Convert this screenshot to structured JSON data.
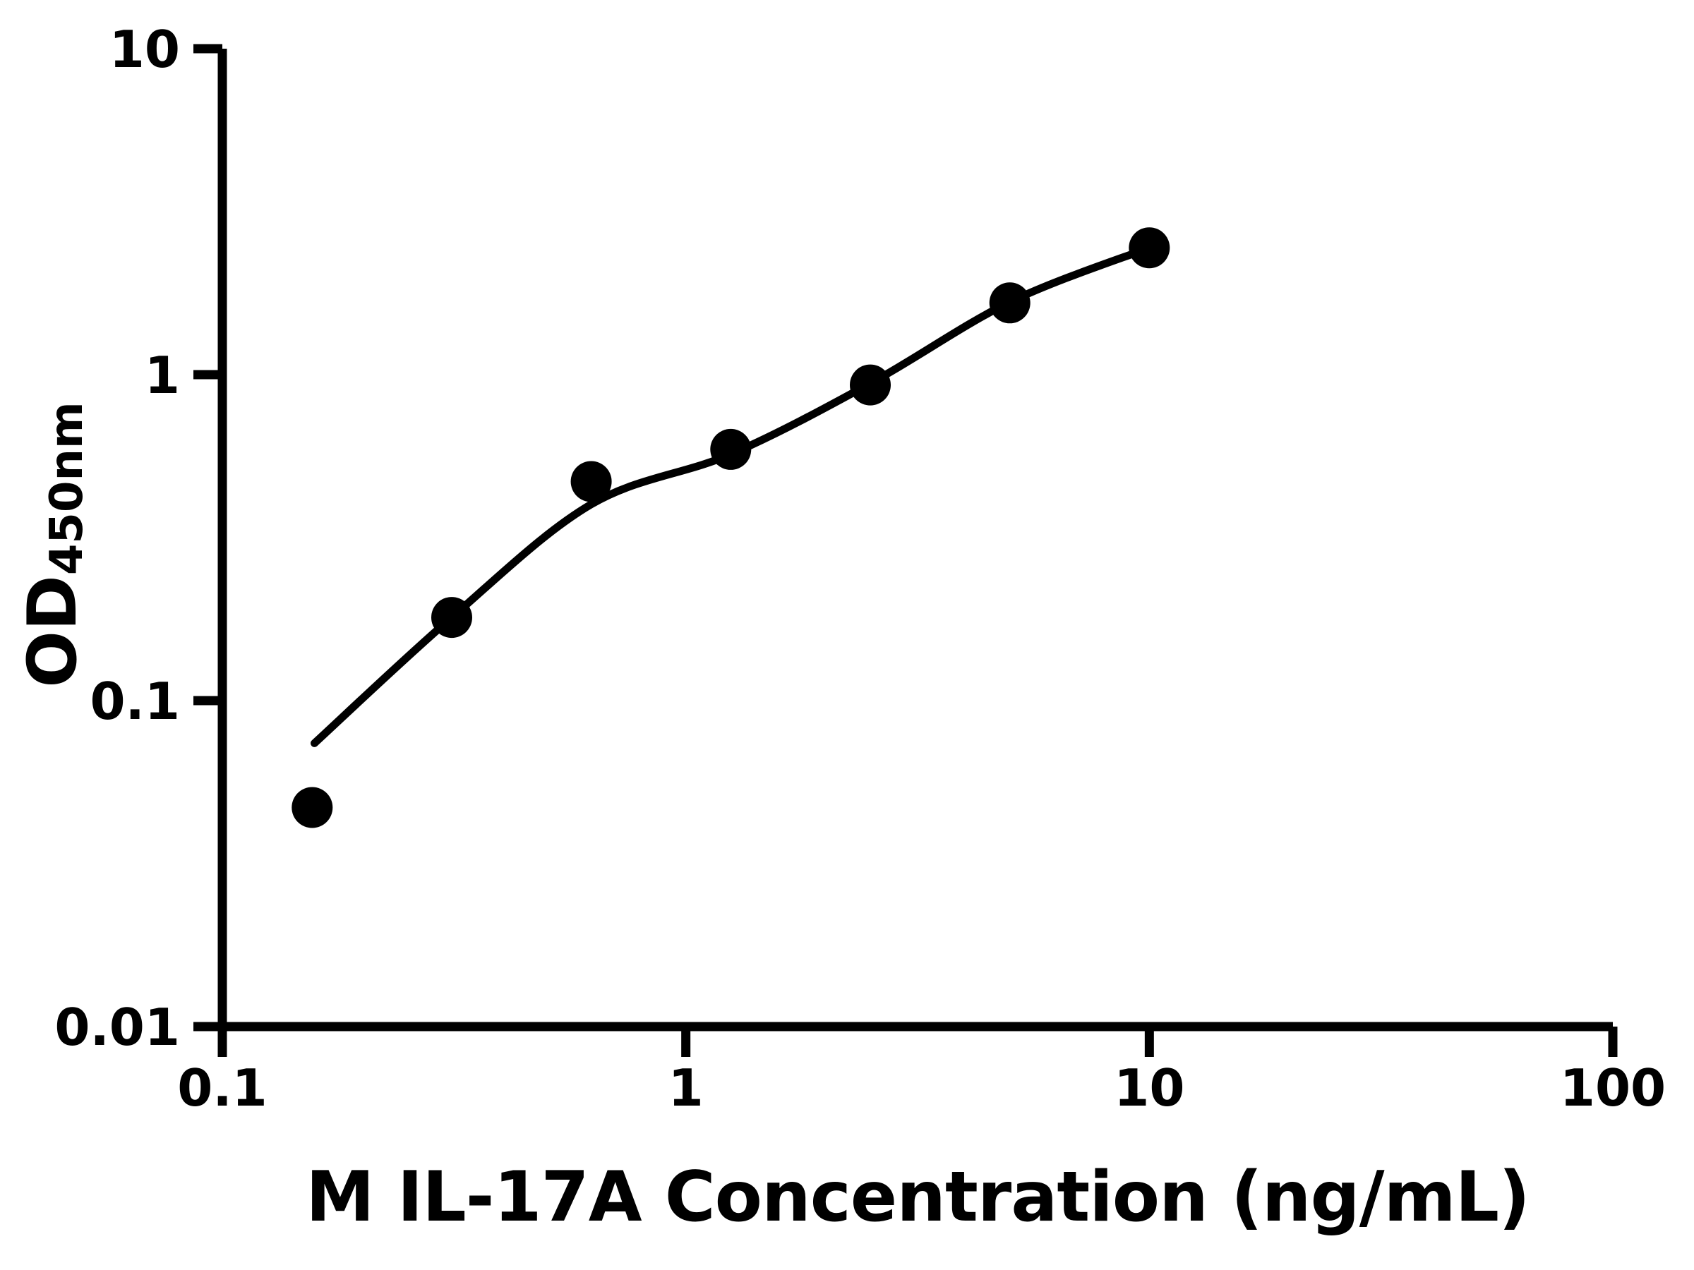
{
  "figure": {
    "background_color": "#ffffff",
    "foreground_color": "#000000"
  },
  "axis_titles": {
    "x": "M IL-17A Concentration (ng/mL)",
    "y_main": "OD",
    "y_sub": "450nm"
  },
  "chart_data": {
    "type": "scatter",
    "title": "",
    "xlabel": "M IL-17A Concentration (ng/mL)",
    "ylabel": "OD450nm",
    "x_scale": "log",
    "y_scale": "log",
    "xlim": [
      0.1,
      100
    ],
    "ylim": [
      0.01,
      10
    ],
    "x_ticks": [
      0.1,
      1,
      10,
      100
    ],
    "x_tick_labels": [
      "0.1",
      "1",
      "10",
      "100"
    ],
    "y_ticks": [
      0.01,
      0.1,
      1,
      10
    ],
    "y_tick_labels": [
      "0.01",
      "0.1",
      "1",
      "10"
    ],
    "grid": false,
    "legend": null,
    "marker_color": "#000000",
    "line_color": "#000000",
    "series": [
      {
        "name": "standard-curve-points",
        "marker": "circle",
        "x": [
          0.15625,
          0.3125,
          0.625,
          1.25,
          2.5,
          5,
          10
        ],
        "y": [
          0.047,
          0.18,
          0.47,
          0.59,
          0.93,
          1.66,
          2.45
        ]
      }
    ],
    "fit_curve": {
      "name": "4pl-fit",
      "x": [
        0.158,
        0.3125,
        0.625,
        1.25,
        2.5,
        5,
        10
      ],
      "y": [
        0.074,
        0.18,
        0.4,
        0.57,
        0.94,
        1.67,
        2.45
      ]
    }
  }
}
